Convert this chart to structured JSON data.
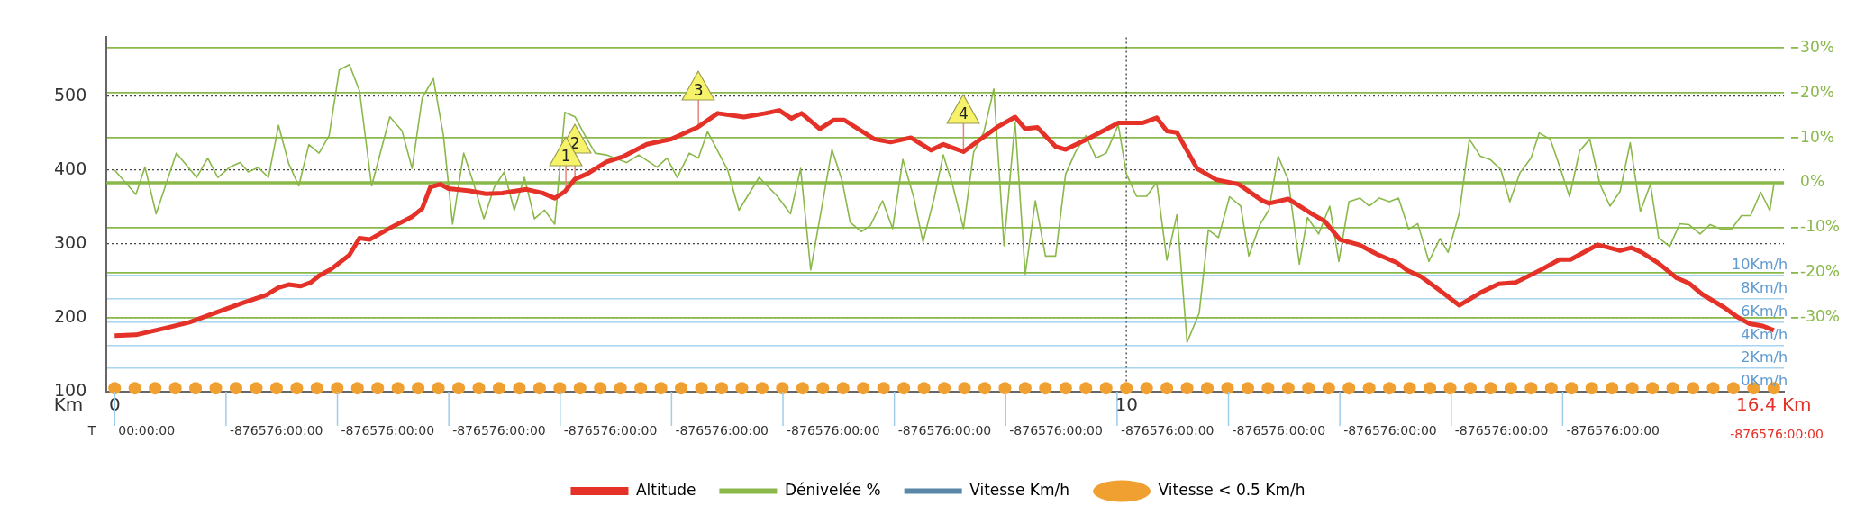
{
  "chart_data": {
    "type": "line",
    "xlabel": "Km",
    "xlim": [
      -0.08,
      16.5
    ],
    "xticks": [
      0,
      10,
      {
        "value": 16.4,
        "label": "16.4 Km"
      }
    ],
    "ylim": [
      100,
      580
    ],
    "yticks": [
      100,
      200,
      300,
      400,
      500
    ],
    "y2lim": [
      -46.5,
      32.4
    ],
    "y2ticks": [
      {
        "value": -30,
        "label": "-30%"
      },
      {
        "value": -20,
        "label": "-20%"
      },
      {
        "value": -10,
        "label": "-10%"
      },
      {
        "value": 0,
        "label": "0%"
      },
      {
        "value": 10,
        "label": "10%"
      },
      {
        "value": 20,
        "label": "20%"
      },
      {
        "value": 30,
        "label": "30%"
      }
    ],
    "y3lim": [
      0,
      30.5
    ],
    "y3ticks": [
      {
        "value": 0,
        "label": "0Km/h"
      },
      {
        "value": 2,
        "label": "2Km/h"
      },
      {
        "value": 4,
        "label": "4Km/h"
      },
      {
        "value": 6,
        "label": "6Km/h"
      },
      {
        "value": 8,
        "label": "8Km/h"
      },
      {
        "value": 10,
        "label": "10Km/h"
      }
    ],
    "grid": "y",
    "legend": "bottom",
    "marker": "none",
    "ref_lines": [
      {
        "axis": "x",
        "value": 10,
        "line_style": "dotted",
        "color": "#555555"
      },
      {
        "axis": "y2",
        "value": 0,
        "line_style": "solid",
        "color": "#8ab84a"
      }
    ],
    "annotations": [
      {
        "text": "1",
        "x": 4.46,
        "y": 371
      },
      {
        "text": "2",
        "x": 4.55,
        "y": 388
      },
      {
        "text": "3",
        "x": 5.77,
        "y": 460
      },
      {
        "text": "4",
        "x": 8.39,
        "y": 428
      },
      "T",
      "00:00:00",
      "-876576:00:00",
      "-876576:00:00",
      "-876576:00:00",
      "-876576:00:00",
      "-876576:00:00",
      "-876576:00:00",
      "-876576:00:00",
      "-876576:00:00",
      "-876576:00:00",
      "-876576:00:00",
      "-876576:00:00",
      "-876576:00:00",
      "-876576:00:00",
      "-876576:00:00"
    ],
    "series": [
      {
        "name": "Altitude",
        "color": "#e53228",
        "x": [
          0,
          0.21,
          0.53,
          0.74,
          1.02,
          1.26,
          1.5,
          1.62,
          1.72,
          1.84,
          1.94,
          2.02,
          2.14,
          2.32,
          2.42,
          2.52,
          2.74,
          2.94,
          3.04,
          3.12,
          3.22,
          3.3,
          3.51,
          3.67,
          3.83,
          4.07,
          4.23,
          4.35,
          4.45,
          4.55,
          4.67,
          4.86,
          5.02,
          5.26,
          5.5,
          5.76,
          5.96,
          6.22,
          6.43,
          6.57,
          6.69,
          6.79,
          6.97,
          7.11,
          7.21,
          7.51,
          7.67,
          7.87,
          8.07,
          8.19,
          8.39,
          8.56,
          8.72,
          8.9,
          9,
          9.12,
          9.3,
          9.4,
          9.64,
          9.92,
          10.16,
          10.3,
          10.4,
          10.5,
          10.7,
          10.89,
          11.11,
          11.34,
          11.41,
          11.6,
          11.83,
          11.96,
          12.11,
          12.3,
          12.48,
          12.67,
          12.78,
          12.91,
          13.08,
          13.29,
          13.5,
          13.68,
          13.85,
          14.11,
          14.28,
          14.39,
          14.66,
          14.88,
          14.99,
          15.09,
          15.26,
          15.44,
          15.56,
          15.69,
          15.91,
          16.03,
          16.16,
          16.29,
          16.4
        ],
        "values": [
          176,
          177,
          187,
          194,
          208,
          220,
          231,
          241,
          245,
          243,
          248,
          257,
          266,
          285,
          308,
          306,
          323,
          337,
          348,
          377,
          381,
          375,
          372,
          368,
          369,
          374,
          369,
          362,
          371,
          388,
          395,
          411,
          418,
          435,
          442,
          458,
          477,
          472,
          477,
          481,
          470,
          477,
          456,
          468,
          468,
          442,
          438,
          444,
          427,
          435,
          425,
          442,
          458,
          472,
          456,
          458,
          432,
          428,
          444,
          464,
          464,
          471,
          453,
          451,
          402,
          387,
          381,
          359,
          355,
          361,
          341,
          331,
          306,
          299,
          286,
          275,
          264,
          256,
          239,
          217,
          234,
          246,
          248,
          266,
          279,
          279,
          299,
          291,
          295,
          289,
          274,
          254,
          247,
          232,
          214,
          202,
          192,
          189,
          183
        ]
      },
      {
        "name": "Dénivelée %",
        "color": "#8ab84a",
        "axis": "y2",
        "x": [
          0,
          0.21,
          0.3,
          0.41,
          0.61,
          0.81,
          0.92,
          1.02,
          1.14,
          1.24,
          1.32,
          1.42,
          1.52,
          1.62,
          1.72,
          1.82,
          1.92,
          2.02,
          2.12,
          2.22,
          2.32,
          2.42,
          2.54,
          2.72,
          2.84,
          2.94,
          3.04,
          3.15,
          3.25,
          3.34,
          3.45,
          3.55,
          3.65,
          3.75,
          3.85,
          3.95,
          4.05,
          4.15,
          4.25,
          4.35,
          4.45,
          4.55,
          4.65,
          4.75,
          4.86,
          5.06,
          5.18,
          5.36,
          5.46,
          5.56,
          5.68,
          5.77,
          5.86,
          6.06,
          6.17,
          6.37,
          6.55,
          6.68,
          6.78,
          6.88,
          7.09,
          7.19,
          7.27,
          7.38,
          7.47,
          7.59,
          7.69,
          7.79,
          7.9,
          7.99,
          8.1,
          8.19,
          8.28,
          8.39,
          8.49,
          8.59,
          8.69,
          8.79,
          8.9,
          9,
          9.1,
          9.2,
          9.3,
          9.4,
          9.5,
          9.6,
          9.7,
          9.8,
          9.92,
          10,
          10.1,
          10.2,
          10.3,
          10.4,
          10.5,
          10.6,
          10.72,
          10.81,
          10.91,
          11.02,
          11.13,
          11.21,
          11.32,
          11.41,
          11.5,
          11.6,
          11.71,
          11.79,
          11.9,
          12.01,
          12.1,
          12.2,
          12.31,
          12.4,
          12.5,
          12.6,
          12.69,
          12.79,
          12.88,
          12.99,
          13.1,
          13.18,
          13.29,
          13.39,
          13.5,
          13.6,
          13.7,
          13.79,
          13.89,
          14,
          14.08,
          14.19,
          14.28,
          14.38,
          14.48,
          14.58,
          14.68,
          14.78,
          14.88,
          14.98,
          15.08,
          15.18,
          15.26,
          15.37,
          15.47,
          15.56,
          15.67,
          15.77,
          15.88,
          15.98,
          16.08,
          16.17,
          16.27,
          16.36,
          16.4
        ],
        "values": [
          2.8,
          -2.6,
          3.5,
          -6.9,
          6.6,
          1.2,
          5.5,
          1.2,
          3.5,
          4.5,
          2.4,
          3.4,
          1.2,
          12.8,
          4.3,
          -0.7,
          8.5,
          6.6,
          10.5,
          25.1,
          26.3,
          20.5,
          -0.7,
          14.7,
          11.6,
          3.2,
          18.9,
          23.2,
          10.5,
          -9.2,
          6.6,
          -0.3,
          -8,
          -1.1,
          2.4,
          -6.1,
          1.2,
          -8,
          -6.1,
          -9.2,
          15.7,
          14.7,
          10.5,
          6.6,
          6.2,
          4.5,
          6.2,
          3.5,
          5.5,
          1.2,
          6.6,
          5.5,
          11.4,
          2.8,
          -6.1,
          1.2,
          -3,
          -6.9,
          3.2,
          -19.4,
          7.4,
          0.5,
          -8.8,
          -10.9,
          -9.5,
          -4,
          -10.2,
          5.2,
          -3.4,
          -13.2,
          -3.4,
          6.2,
          -0.3,
          -10.2,
          6.8,
          11.2,
          20.9,
          -14,
          13.5,
          -20.3,
          -4,
          -16.3,
          -16.3,
          2,
          7,
          10.5,
          5.5,
          6.6,
          12.9,
          2,
          -3,
          -3,
          0.1,
          -17.2,
          -7.1,
          -35.5,
          -29,
          -10.5,
          -12.2,
          -3.1,
          -5.2,
          -16.3,
          -9.3,
          -6,
          5.9,
          0.6,
          -18.1,
          -7.7,
          -11.4,
          -5.2,
          -17.5,
          -4.2,
          -3.4,
          -5.2,
          -3.4,
          -4.2,
          -3.4,
          -10.3,
          -9.1,
          -17.5,
          -12.4,
          -15.5,
          -6.8,
          9.7,
          5.9,
          5.1,
          3,
          -4.2,
          2.2,
          5.5,
          11.1,
          9.7,
          3.8,
          -3.1,
          7.1,
          9.7,
          -0.3,
          -5.2,
          -1.9,
          8.9,
          -6.4,
          -0.3,
          -12.2,
          -14.2,
          -9.1,
          -9.3,
          -11.4,
          -9.3,
          -10.3,
          -10.3,
          -7.3,
          -7.3,
          -2.1,
          -6.2,
          -0.3
        ]
      },
      {
        "name": "Vitesse Km/h",
        "color": "#5a86a8",
        "axis": "y3"
      },
      {
        "name": "Vitesse < 0.5 Km/h",
        "color": "#f0a030",
        "axis": "y3",
        "type": "scatter",
        "marker": "circle",
        "x": [
          0,
          0.2,
          0.4,
          0.6,
          0.8,
          1,
          1.2,
          1.4,
          1.6,
          1.8,
          2,
          2.2,
          2.4,
          2.6,
          2.8,
          3,
          3.2,
          3.4,
          3.6,
          3.8,
          4,
          4.2,
          4.4,
          4.6,
          4.8,
          5,
          5.2,
          5.4,
          5.6,
          5.8,
          6,
          6.2,
          6.4,
          6.6,
          6.8,
          7,
          7.2,
          7.4,
          7.6,
          7.8,
          8,
          8.2,
          8.4,
          8.6,
          8.8,
          9,
          9.2,
          9.4,
          9.6,
          9.8,
          10,
          10.2,
          10.4,
          10.6,
          10.8,
          11,
          11.2,
          11.4,
          11.6,
          11.8,
          12,
          12.2,
          12.4,
          12.6,
          12.8,
          13,
          13.2,
          13.4,
          13.6,
          13.8,
          14,
          14.2,
          14.4,
          14.6,
          14.8,
          15,
          15.2,
          15.4,
          15.6,
          15.8,
          16,
          16.2,
          16.4
        ],
        "values": [
          0.3,
          0.3,
          0.3,
          0.3,
          0.3,
          0.3,
          0.3,
          0.3,
          0.3,
          0.3,
          0.3,
          0.3,
          0.3,
          0.3,
          0.3,
          0.3,
          0.3,
          0.3,
          0.3,
          0.3,
          0.3,
          0.3,
          0.3,
          0.3,
          0.3,
          0.3,
          0.3,
          0.3,
          0.3,
          0.3,
          0.3,
          0.3,
          0.3,
          0.3,
          0.3,
          0.3,
          0.3,
          0.3,
          0.3,
          0.3,
          0.3,
          0.3,
          0.3,
          0.3,
          0.3,
          0.3,
          0.3,
          0.3,
          0.3,
          0.3,
          0.3,
          0.3,
          0.3,
          0.3,
          0.3,
          0.3,
          0.3,
          0.3,
          0.3,
          0.3,
          0.3,
          0.3,
          0.3,
          0.3,
          0.3,
          0.3,
          0.3,
          0.3,
          0.3,
          0.3,
          0.3,
          0.3,
          0.3,
          0.3,
          0.3,
          0.3,
          0.3,
          0.3,
          0.3,
          0.3,
          0.3,
          0.3,
          0.3
        ]
      }
    ]
  }
}
